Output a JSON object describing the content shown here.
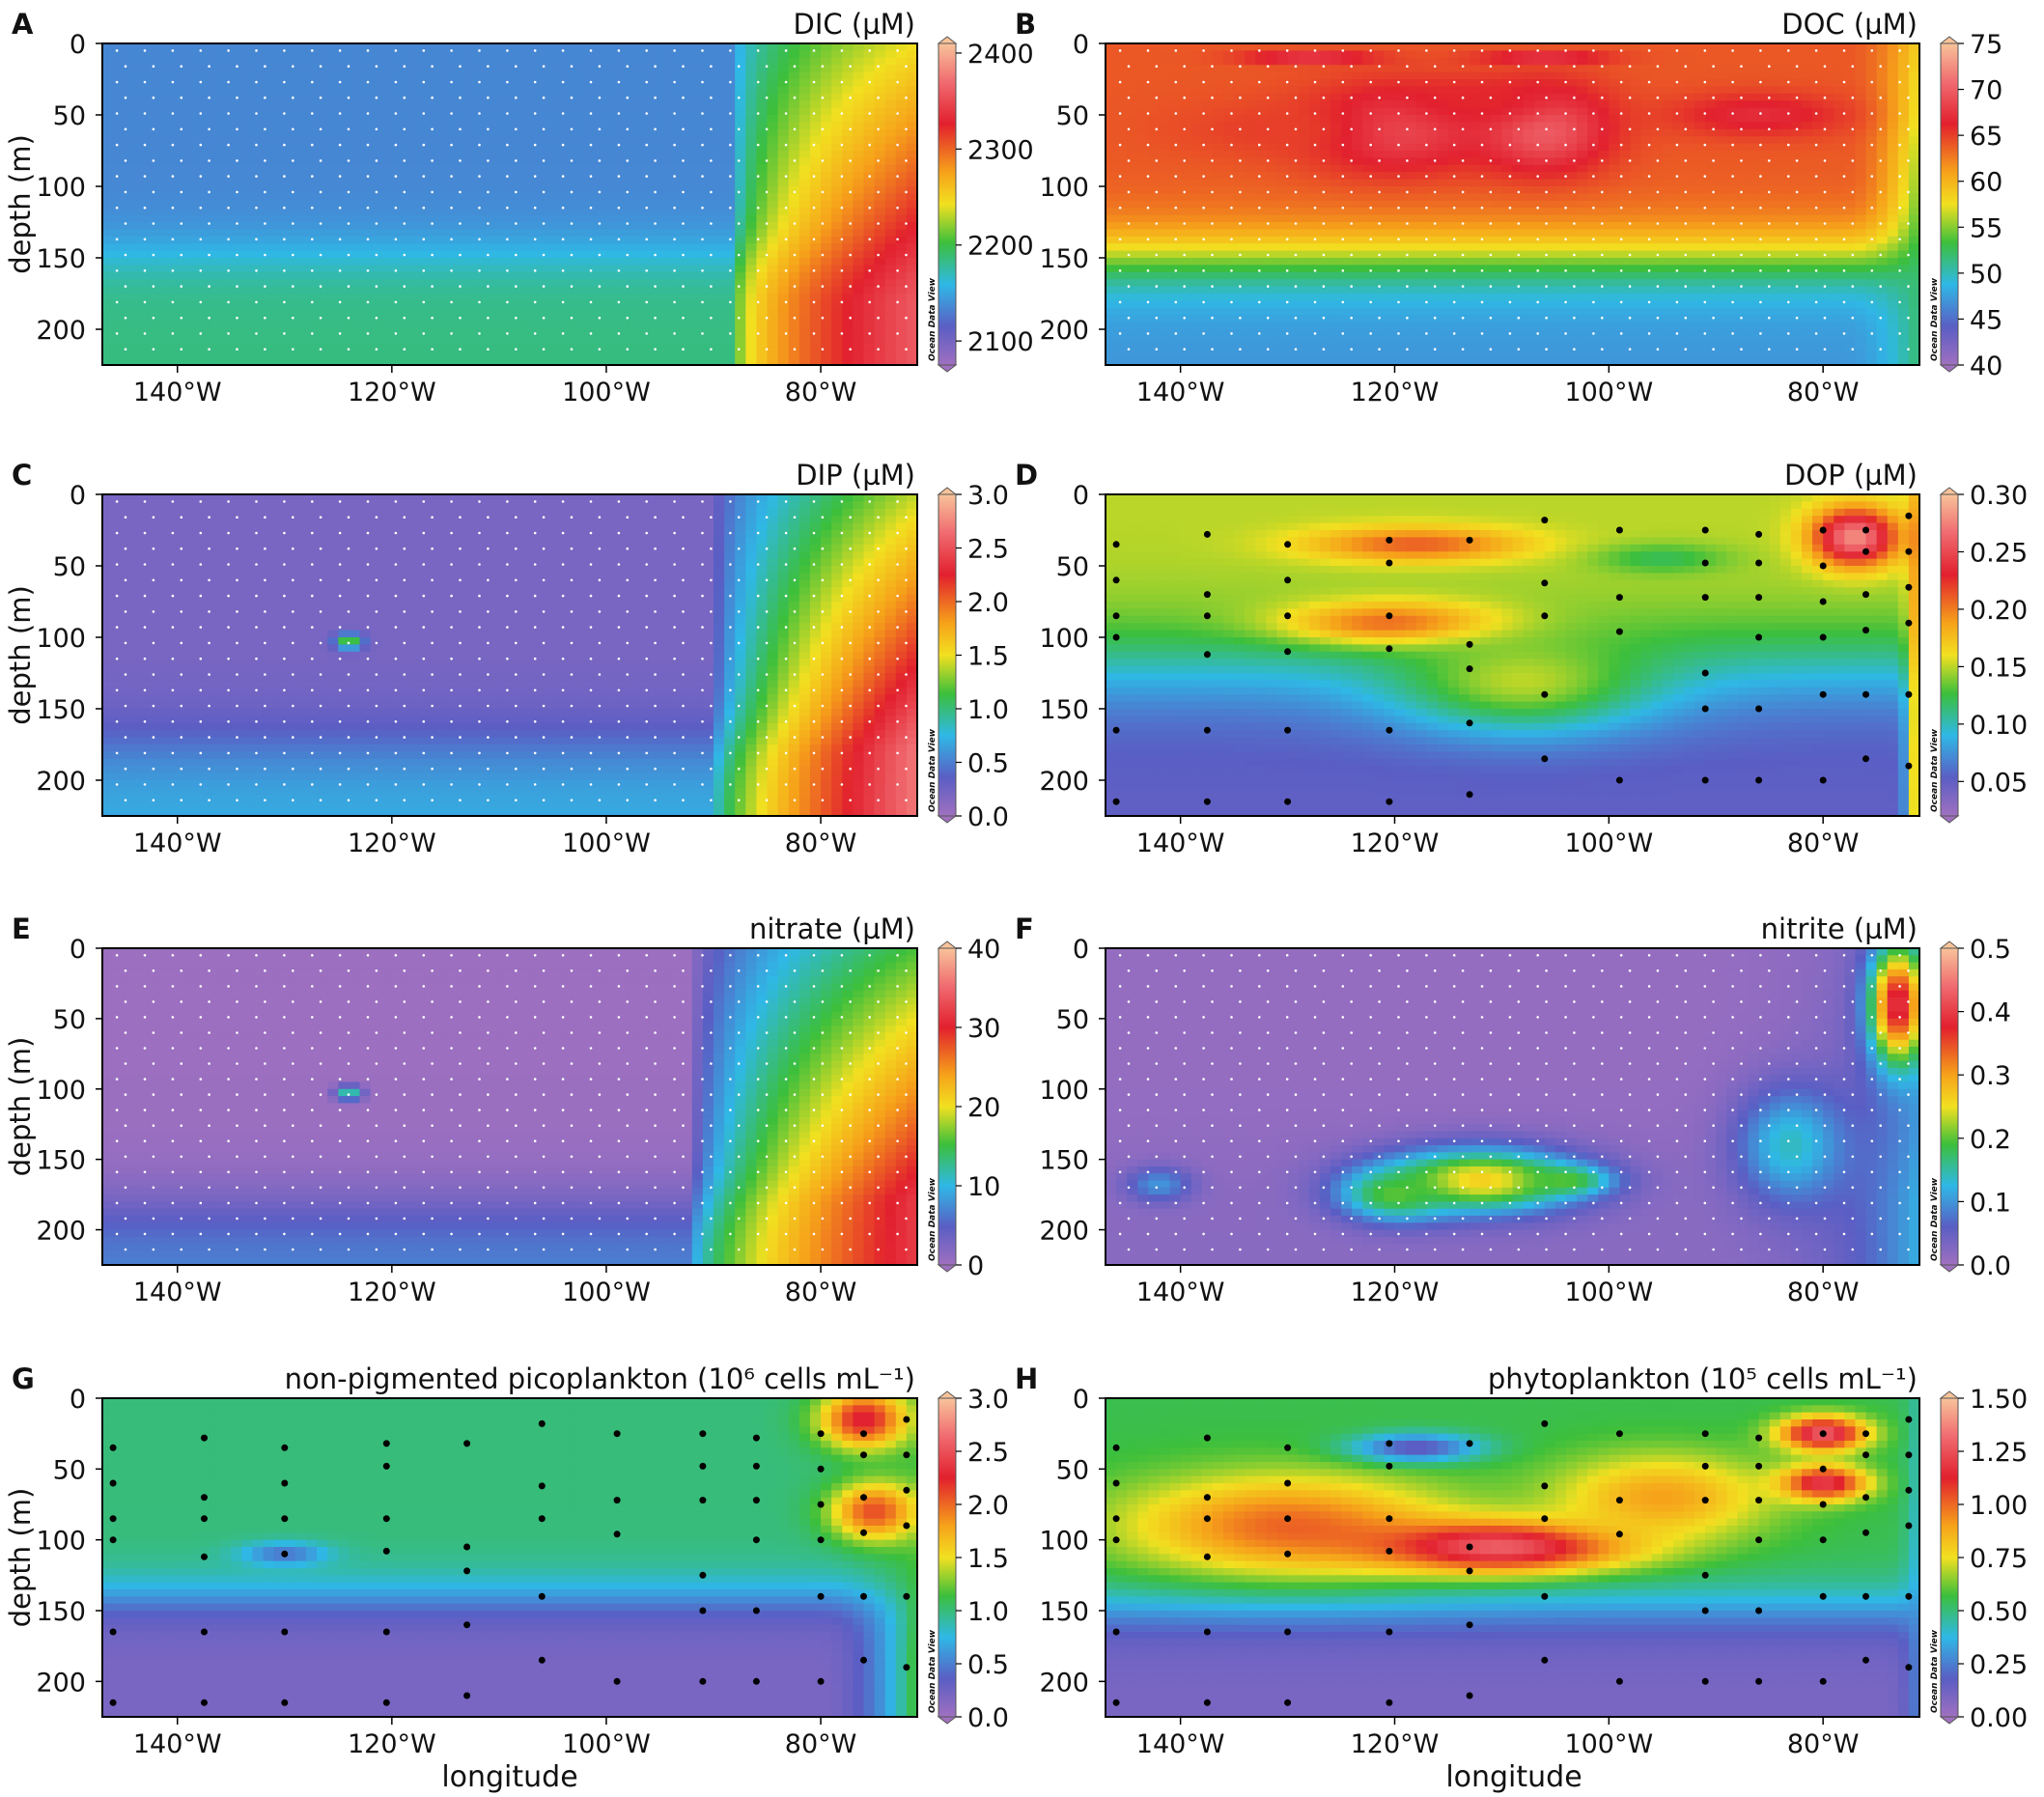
{
  "figure": {
    "xlabel": "longitude",
    "ylabel": "depth (m)",
    "watermark": "Ocean Data View"
  },
  "chart_data": [
    {
      "letter": "A",
      "type": "heatmap",
      "title": "DIC (µM)",
      "xlim": [
        -147,
        -71
      ],
      "ylim": [
        0,
        225
      ],
      "xticks": [
        {
          "v": -140,
          "t": "140°W"
        },
        {
          "v": -120,
          "t": "120°W"
        },
        {
          "v": -100,
          "t": "100°W"
        },
        {
          "v": -80,
          "t": "80°W"
        }
      ],
      "yticks": [
        0,
        50,
        100,
        150,
        200
      ],
      "colorbar": {
        "min": 2075,
        "max": 2410,
        "ticks": [
          {
            "v": 2100,
            "t": "2100"
          },
          {
            "v": 2200,
            "t": "2200"
          },
          {
            "v": 2300,
            "t": "2300"
          },
          {
            "v": 2400,
            "t": "2400"
          }
        ]
      },
      "field": {
        "surf": 2135,
        "deep": 2185,
        "tc": 148,
        "tw": 12,
        "east_lon": -88,
        "east_max": 2360,
        "rise": 2.2,
        "bumps": []
      },
      "stations": "dense"
    },
    {
      "letter": "B",
      "type": "heatmap",
      "title": "DOC (µM)",
      "xlim": [
        -147,
        -71
      ],
      "ylim": [
        0,
        225
      ],
      "xticks": [
        {
          "v": -140,
          "t": "140°W"
        },
        {
          "v": -120,
          "t": "120°W"
        },
        {
          "v": -100,
          "t": "100°W"
        },
        {
          "v": -80,
          "t": "80°W"
        }
      ],
      "yticks": [
        0,
        50,
        100,
        150,
        200
      ],
      "colorbar": {
        "min": 40,
        "max": 75,
        "ticks": [
          {
            "v": 40,
            "t": "40"
          },
          {
            "v": 45,
            "t": "45"
          },
          {
            "v": 50,
            "t": "50"
          },
          {
            "v": 55,
            "t": "55"
          },
          {
            "v": 60,
            "t": "60"
          },
          {
            "v": 65,
            "t": "65"
          },
          {
            "v": 70,
            "t": "70"
          },
          {
            "v": 75,
            "t": "75"
          }
        ]
      },
      "field": {
        "surf": 64,
        "deep": 47,
        "tc": 150,
        "tw": 14,
        "east_lon": -78,
        "east_max": 52,
        "rise": 0.5,
        "bumps": [
          [
            -128,
            10,
            6,
            4,
            69
          ],
          [
            -120,
            60,
            8,
            30,
            69
          ],
          [
            -106,
            10,
            6,
            3,
            70
          ],
          [
            -106,
            60,
            6,
            30,
            70
          ],
          [
            -112,
            40,
            7,
            15,
            66
          ],
          [
            -86,
            50,
            8,
            15,
            67
          ],
          [
            -132,
            60,
            9,
            20,
            65
          ]
        ]
      },
      "stations": "dense"
    },
    {
      "letter": "C",
      "type": "heatmap",
      "title": "DIP (µM)",
      "xlim": [
        -147,
        -71
      ],
      "ylim": [
        0,
        225
      ],
      "xticks": [
        {
          "v": -140,
          "t": "140°W"
        },
        {
          "v": -120,
          "t": "120°W"
        },
        {
          "v": -100,
          "t": "100°W"
        },
        {
          "v": -80,
          "t": "80°W"
        }
      ],
      "yticks": [
        0,
        50,
        100,
        150,
        200
      ],
      "colorbar": {
        "min": 0,
        "max": 3.0,
        "ticks": [
          {
            "v": 0,
            "t": "0.0"
          },
          {
            "v": 0.5,
            "t": "0.5"
          },
          {
            "v": 1.0,
            "t": "1.0"
          },
          {
            "v": 1.5,
            "t": "1.5"
          },
          {
            "v": 2.0,
            "t": "2.0"
          },
          {
            "v": 2.5,
            "t": "2.5"
          },
          {
            "v": 3.0,
            "t": "3.0"
          }
        ]
      },
      "field": {
        "surf": 0.2,
        "deep": 0.7,
        "tc": 175,
        "tw": 15,
        "east_lon": -90,
        "east_max": 2.7,
        "rise": 1.6,
        "bumps": [
          [
            -124,
            103,
            1.2,
            5,
            1.3
          ]
        ]
      },
      "stations": "dense"
    },
    {
      "letter": "D",
      "type": "heatmap",
      "title": "DOP (µM)",
      "xlim": [
        -147,
        -71
      ],
      "ylim": [
        0,
        225
      ],
      "xticks": [
        {
          "v": -140,
          "t": "140°W"
        },
        {
          "v": -120,
          "t": "120°W"
        },
        {
          "v": -100,
          "t": "100°W"
        },
        {
          "v": -80,
          "t": "80°W"
        }
      ],
      "yticks": [
        0,
        50,
        100,
        150,
        200
      ],
      "colorbar": {
        "min": 0.02,
        "max": 0.3,
        "ticks": [
          {
            "v": 0.05,
            "t": "0.05"
          },
          {
            "v": 0.1,
            "t": "0.10"
          },
          {
            "v": 0.15,
            "t": "0.15"
          },
          {
            "v": 0.2,
            "t": "0.20"
          },
          {
            "v": 0.25,
            "t": "0.25"
          },
          {
            "v": 0.3,
            "t": "0.30"
          }
        ]
      },
      "field": {
        "surf": 0.15,
        "deep": 0.05,
        "tc": 120,
        "tw": 20,
        "east_lon": -74,
        "east_max": 0.25,
        "rise": 0.3,
        "bumps": [
          [
            -118,
            35,
            10,
            12,
            0.21
          ],
          [
            -120,
            90,
            10,
            15,
            0.21
          ],
          [
            -77,
            30,
            4,
            20,
            0.28
          ],
          [
            -108,
            130,
            12,
            35,
            0.15
          ],
          [
            -95,
            45,
            6,
            10,
            0.12
          ]
        ]
      },
      "stations": "sparse"
    },
    {
      "letter": "E",
      "type": "heatmap",
      "title": "nitrate (µM)",
      "xlim": [
        -147,
        -71
      ],
      "ylim": [
        0,
        225
      ],
      "xticks": [
        {
          "v": -140,
          "t": "140°W"
        },
        {
          "v": -120,
          "t": "120°W"
        },
        {
          "v": -100,
          "t": "100°W"
        },
        {
          "v": -80,
          "t": "80°W"
        }
      ],
      "yticks": [
        0,
        50,
        100,
        150,
        200
      ],
      "colorbar": {
        "min": 0,
        "max": 40,
        "ticks": [
          {
            "v": 0,
            "t": "0"
          },
          {
            "v": 10,
            "t": "10"
          },
          {
            "v": 20,
            "t": "20"
          },
          {
            "v": 30,
            "t": "30"
          },
          {
            "v": 40,
            "t": "40"
          }
        ]
      },
      "field": {
        "surf": 0.3,
        "deep": 7,
        "tc": 185,
        "tw": 14,
        "east_lon": -92,
        "east_max": 32,
        "rise": 1.8,
        "bumps": [
          [
            -124,
            103,
            1.2,
            5,
            14
          ]
        ]
      },
      "stations": "dense"
    },
    {
      "letter": "F",
      "type": "heatmap",
      "title": "nitrite (µM)",
      "xlim": [
        -147,
        -71
      ],
      "ylim": [
        0,
        225
      ],
      "xticks": [
        {
          "v": -140,
          "t": "140°W"
        },
        {
          "v": -120,
          "t": "120°W"
        },
        {
          "v": -100,
          "t": "100°W"
        },
        {
          "v": -80,
          "t": "80°W"
        }
      ],
      "yticks": [
        0,
        50,
        100,
        150,
        200
      ],
      "colorbar": {
        "min": 0,
        "max": 0.5,
        "ticks": [
          {
            "v": 0,
            "t": "0.0"
          },
          {
            "v": 0.1,
            "t": "0.1"
          },
          {
            "v": 0.2,
            "t": "0.2"
          },
          {
            "v": 0.3,
            "t": "0.3"
          },
          {
            "v": 0.4,
            "t": "0.4"
          },
          {
            "v": 0.5,
            "t": "0.5"
          }
        ]
      },
      "field": {
        "surf": 0.01,
        "deep": 0.02,
        "tc": 150,
        "tw": 20,
        "east_lon": -95,
        "east_max": 0.12,
        "rise": 0.3,
        "bumps": [
          [
            -112,
            165,
            9,
            22,
            0.27
          ],
          [
            -104,
            165,
            4,
            10,
            0.2
          ],
          [
            -120,
            175,
            5,
            18,
            0.2
          ],
          [
            -73,
            40,
            2.5,
            40,
            0.4
          ],
          [
            -142,
            168,
            3,
            12,
            0.1
          ],
          [
            -83,
            140,
            5,
            40,
            0.14
          ]
        ]
      },
      "stations": "dense"
    },
    {
      "letter": "G",
      "type": "heatmap",
      "title": "non-pigmented picoplankton (10⁶ cells mL⁻¹)",
      "xlim": [
        -147,
        -71
      ],
      "ylim": [
        0,
        225
      ],
      "xticks": [
        {
          "v": -140,
          "t": "140°W"
        },
        {
          "v": -120,
          "t": "120°W"
        },
        {
          "v": -100,
          "t": "100°W"
        },
        {
          "v": -80,
          "t": "80°W"
        }
      ],
      "yticks": [
        0,
        50,
        100,
        150,
        200
      ],
      "colorbar": {
        "min": 0,
        "max": 3.0,
        "ticks": [
          {
            "v": 0,
            "t": "0.0"
          },
          {
            "v": 0.5,
            "t": "0.5"
          },
          {
            "v": 1.0,
            "t": "1.0"
          },
          {
            "v": 1.5,
            "t": "1.5"
          },
          {
            "v": 2.0,
            "t": "2.0"
          },
          {
            "v": 2.5,
            "t": "2.5"
          },
          {
            "v": 3.0,
            "t": "3.0"
          }
        ]
      },
      "field": {
        "surf": 1.0,
        "deep": 0.2,
        "tc": 140,
        "tw": 10,
        "east_lon": -80,
        "east_max": 1.2,
        "rise": 0.5,
        "bumps": [
          [
            -76,
            15,
            4,
            20,
            2.3
          ],
          [
            -75,
            80,
            4,
            20,
            2.1
          ],
          [
            -130,
            110,
            4,
            8,
            0.45
          ]
        ]
      },
      "stations": "sparse"
    },
    {
      "letter": "H",
      "type": "heatmap",
      "title": "phytoplankton (10⁵ cells mL⁻¹)",
      "xlim": [
        -147,
        -71
      ],
      "ylim": [
        0,
        225
      ],
      "xticks": [
        {
          "v": -140,
          "t": "140°W"
        },
        {
          "v": -120,
          "t": "120°W"
        },
        {
          "v": -100,
          "t": "100°W"
        },
        {
          "v": -80,
          "t": "80°W"
        }
      ],
      "yticks": [
        0,
        50,
        100,
        150,
        200
      ],
      "colorbar": {
        "min": 0,
        "max": 1.5,
        "ticks": [
          {
            "v": 0,
            "t": "0.00"
          },
          {
            "v": 0.25,
            "t": "0.25"
          },
          {
            "v": 0.5,
            "t": "0.50"
          },
          {
            "v": 0.75,
            "t": "0.75"
          },
          {
            "v": 1.0,
            "t": "1.00"
          },
          {
            "v": 1.25,
            "t": "1.25"
          },
          {
            "v": 1.5,
            "t": "1.50"
          }
        ]
      },
      "field": {
        "surf": 0.55,
        "deep": 0.1,
        "tc": 148,
        "tw": 12,
        "east_lon": -75,
        "east_max": 0.3,
        "rise": 0.3,
        "bumps": [
          [
            -130,
            90,
            15,
            35,
            1.0
          ],
          [
            -110,
            105,
            12,
            18,
            1.3
          ],
          [
            -118,
            35,
            6,
            10,
            0.15
          ],
          [
            -80,
            25,
            4,
            12,
            1.3
          ],
          [
            -80,
            60,
            4,
            12,
            1.25
          ],
          [
            -95,
            70,
            10,
            30,
            0.9
          ]
        ]
      },
      "stations": "sparse"
    }
  ]
}
